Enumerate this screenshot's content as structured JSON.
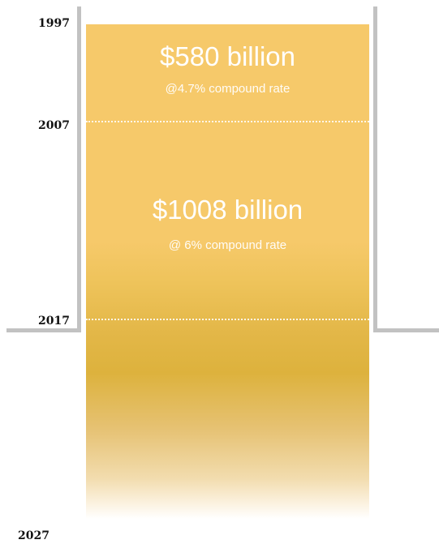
{
  "timeline": {
    "years": [
      "1997",
      "2007",
      "2017",
      "2027"
    ]
  },
  "segments": [
    {
      "amount": "$580 billion",
      "rate": "@4.7% compound rate"
    },
    {
      "amount": "$1008 billion",
      "rate": "@ 6% compound rate"
    }
  ],
  "colors": {
    "column_top": "#f6c96a",
    "column_mid": "#ddb23d",
    "column_bottom": "#ffffff",
    "bracket": "#c2c2c2",
    "divider": "#ffffff",
    "year_text": "#111111",
    "amount_text": "#ffffff"
  }
}
